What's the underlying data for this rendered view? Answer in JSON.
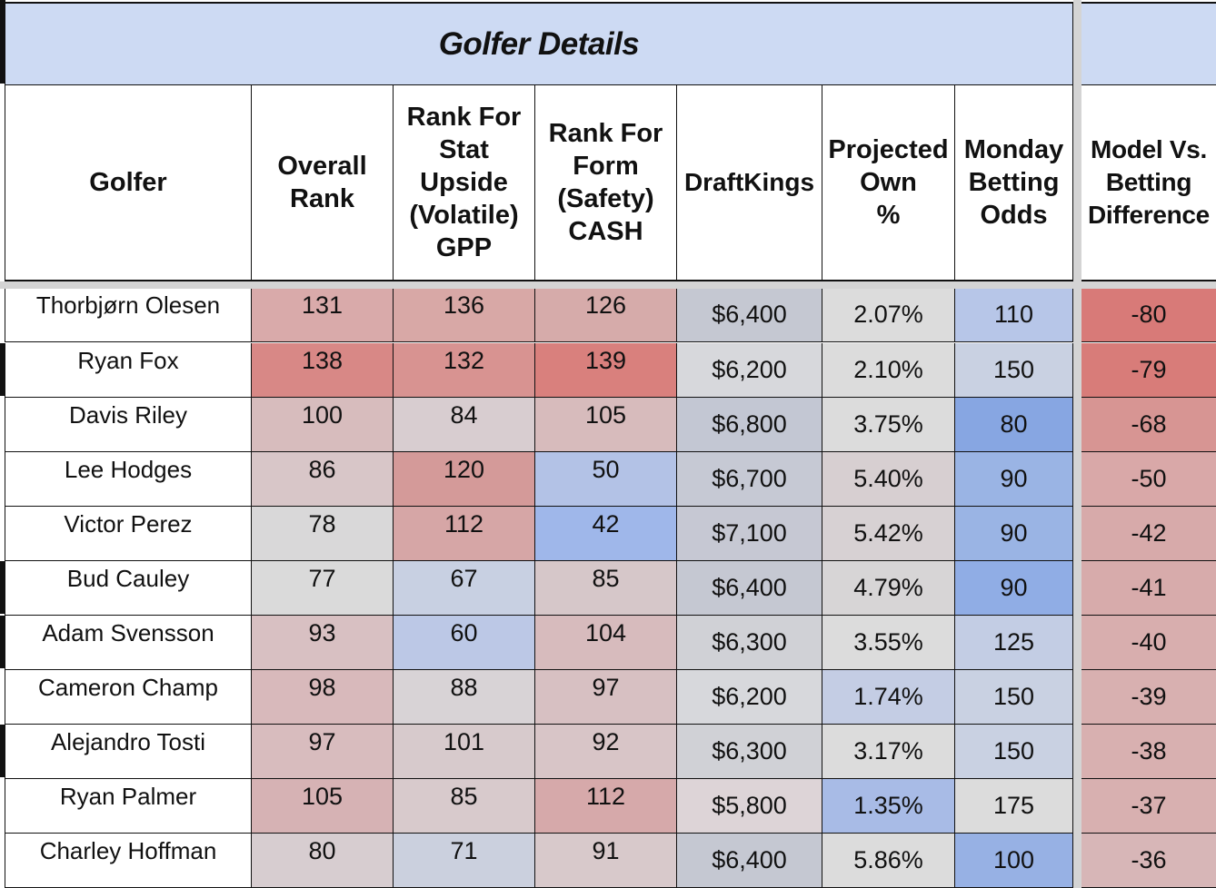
{
  "title": "Golfer Details",
  "headers": [
    "Golfer",
    "Overall\nRank",
    "Rank For\nStat\nUpside\n(Volatile)\nGPP",
    "Rank For\nForm\n(Safety)\nCASH",
    "DraftKings",
    "Projected\nOwn\n%",
    "Monday\nBetting\nOdds",
    "Model Vs.\nBetting\nDifference"
  ],
  "rows": [
    {
      "golfer": "Thorbjørn Olesen",
      "overall": "131",
      "upside": "136",
      "form": "126",
      "dk": "$6,400",
      "own": "2.07%",
      "odds": "110",
      "diff": "-80"
    },
    {
      "golfer": "Ryan Fox",
      "overall": "138",
      "upside": "132",
      "form": "139",
      "dk": "$6,200",
      "own": "2.10%",
      "odds": "150",
      "diff": "-79"
    },
    {
      "golfer": "Davis Riley",
      "overall": "100",
      "upside": "84",
      "form": "105",
      "dk": "$6,800",
      "own": "3.75%",
      "odds": "80",
      "diff": "-68"
    },
    {
      "golfer": "Lee Hodges",
      "overall": "86",
      "upside": "120",
      "form": "50",
      "dk": "$6,700",
      "own": "5.40%",
      "odds": "90",
      "diff": "-50"
    },
    {
      "golfer": "Victor Perez",
      "overall": "78",
      "upside": "112",
      "form": "42",
      "dk": "$7,100",
      "own": "5.42%",
      "odds": "90",
      "diff": "-42"
    },
    {
      "golfer": "Bud Cauley",
      "overall": "77",
      "upside": "67",
      "form": "85",
      "dk": "$6,400",
      "own": "4.79%",
      "odds": "90",
      "diff": "-41"
    },
    {
      "golfer": "Adam Svensson",
      "overall": "93",
      "upside": "60",
      "form": "104",
      "dk": "$6,300",
      "own": "3.55%",
      "odds": "125",
      "diff": "-40"
    },
    {
      "golfer": "Cameron Champ",
      "overall": "98",
      "upside": "88",
      "form": "97",
      "dk": "$6,200",
      "own": "1.74%",
      "odds": "150",
      "diff": "-39"
    },
    {
      "golfer": "Alejandro Tosti",
      "overall": "97",
      "upside": "101",
      "form": "92",
      "dk": "$6,300",
      "own": "3.17%",
      "odds": "150",
      "diff": "-38"
    },
    {
      "golfer": "Ryan Palmer",
      "overall": "105",
      "upside": "85",
      "form": "112",
      "dk": "$5,800",
      "own": "1.35%",
      "odds": "175",
      "diff": "-37"
    },
    {
      "golfer": "Charley Hoffman",
      "overall": "80",
      "upside": "71",
      "form": "91",
      "dk": "$6,400",
      "own": "5.86%",
      "odds": "100",
      "diff": "-36"
    }
  ],
  "cell_colors": [
    [
      "#d9aaaa",
      "#d8a8a6",
      "#d6abaa",
      "#c5c8d2",
      "#dcdcdc",
      "#b7c6e8",
      "#d87a78"
    ],
    [
      "#d88886",
      "#d89391",
      "#d9807d",
      "#d7d8dc",
      "#dcdcdc",
      "#c9d1e2",
      "#d87c79"
    ],
    [
      "#d7bcbd",
      "#d8cdd0",
      "#d7bbbc",
      "#c3c7d3",
      "#dcdcdc",
      "#87a6e2",
      "#d79593"
    ],
    [
      "#d8c6c8",
      "#d49a99",
      "#b3c2e6",
      "#c6c9d4",
      "#d7cfd1",
      "#9ab4e4",
      "#d9a8a8"
    ],
    [
      "#d9d8d9",
      "#d6a6a6",
      "#9fb7ea",
      "#c6c8d3",
      "#d7d1d3",
      "#9ab4e4",
      "#d7aaaa"
    ],
    [
      "#dadada",
      "#c8d0e2",
      "#d6c7c9",
      "#c5c8d2",
      "#d7d5d6",
      "#90ade5",
      "#d7abab"
    ],
    [
      "#d8c0c2",
      "#bcc8e6",
      "#d7bbbd",
      "#d0d1d6",
      "#dcdcdc",
      "#c3cde4",
      "#d8aeae"
    ],
    [
      "#d8b9bb",
      "#d8d3d6",
      "#d7c0c2",
      "#d7d8dc",
      "#c4cde4",
      "#c9d1e2",
      "#d8b0b0"
    ],
    [
      "#d8bcbe",
      "#d7cacc",
      "#d8c5c7",
      "#d0d1d6",
      "#dcdcdc",
      "#c9d1e2",
      "#d8b0b0"
    ],
    [
      "#d6b2b4",
      "#d8cacc",
      "#d6a9aa",
      "#ddd4d7",
      "#a8bbe6",
      "#dcdcdc",
      "#d8b0b0"
    ],
    [
      "#d7cdd0",
      "#cbd0de",
      "#d8c9cb",
      "#c5c8d2",
      "#dcdcdc",
      "#97b1e4",
      "#d7b6b7"
    ]
  ],
  "colors": {
    "title_bg": "#cddaf3",
    "grid": "#111111",
    "separator": "#d4d4d4"
  }
}
